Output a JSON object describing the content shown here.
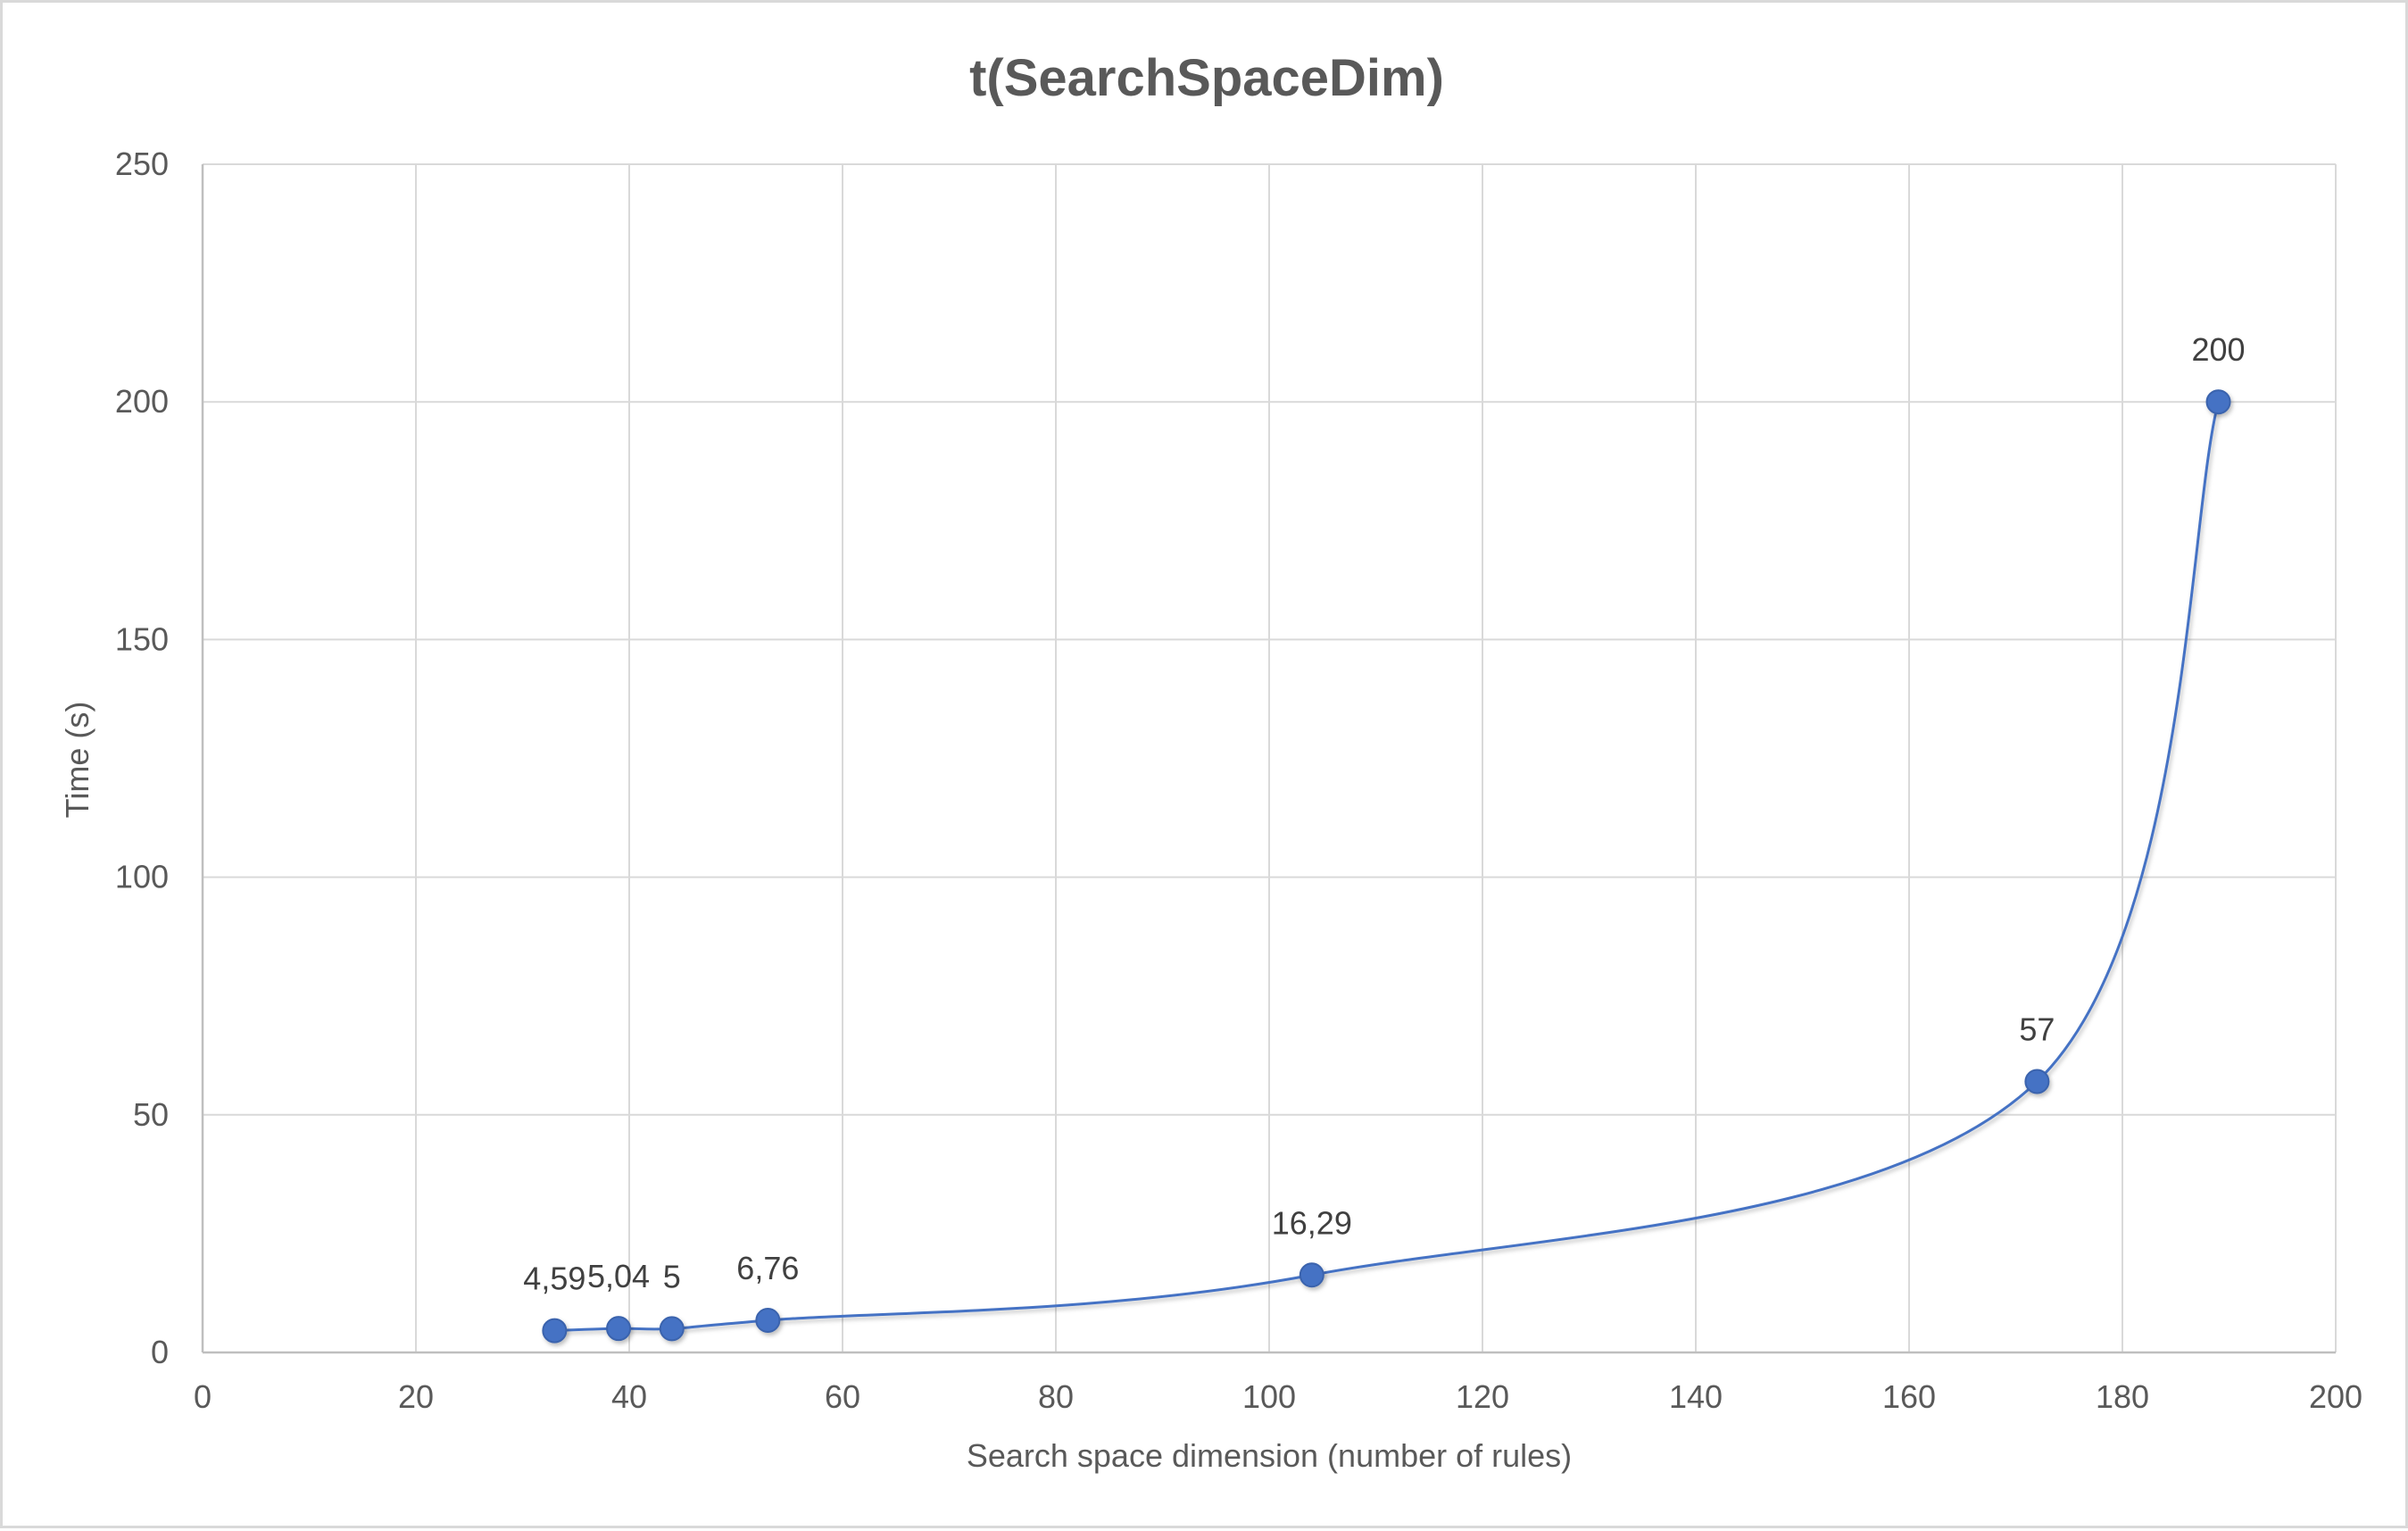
{
  "chart_data": {
    "type": "scatter",
    "title": "t(SearchSpaceDim)",
    "xlabel": "Search space dimension (number of rules)",
    "ylabel": "Time (s)",
    "xlim": [
      0,
      200
    ],
    "ylim": [
      0,
      250
    ],
    "x_ticks": [
      0,
      20,
      40,
      60,
      80,
      100,
      120,
      140,
      160,
      180,
      200
    ],
    "y_ticks": [
      0,
      50,
      100,
      150,
      200,
      250
    ],
    "grid": true,
    "legend": "none",
    "line_style": "smoothed",
    "series": [
      {
        "color": "#4472c4",
        "x": [
          33,
          39,
          44,
          53,
          104,
          172,
          189
        ],
        "y": [
          4.59,
          5.04,
          5,
          6.76,
          16.29,
          57,
          200
        ],
        "labels": [
          "4,59",
          "5,04",
          "5",
          "6,76",
          "16,29",
          "57",
          "200"
        ]
      }
    ]
  }
}
